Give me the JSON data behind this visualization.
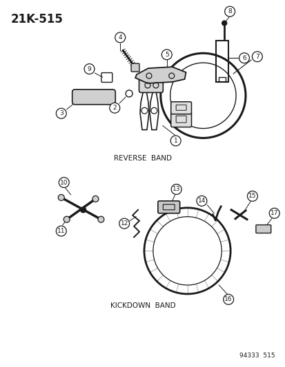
{
  "title": "21K-515",
  "bg_color": "#ffffff",
  "line_color": "#1a1a1a",
  "reverse_band_label": "REVERSE  BAND",
  "kickdown_band_label": "KICKDOWN  BAND",
  "footer": "94333  515",
  "fig_width": 4.14,
  "fig_height": 5.33,
  "dpi": 100
}
